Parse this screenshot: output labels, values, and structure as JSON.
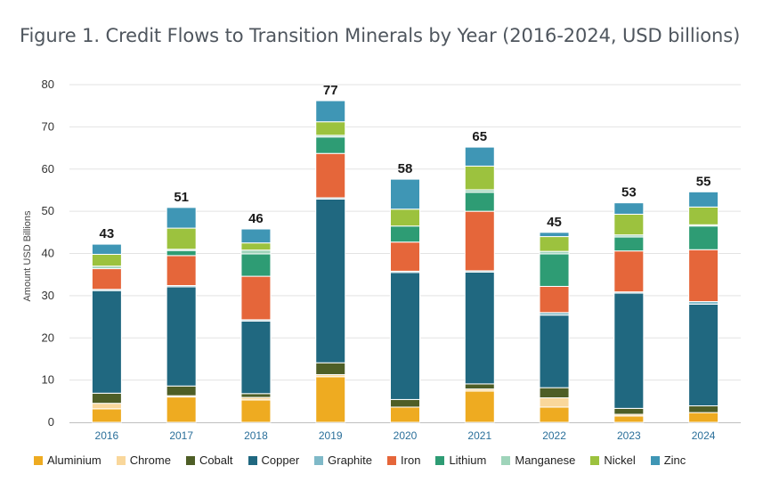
{
  "title": "Figure 1. Credit Flows to Transition Minerals by Year (2016-2024, USD billions)",
  "chart_data": {
    "type": "bar",
    "stacked": true,
    "categories": [
      "2016",
      "2017",
      "2018",
      "2019",
      "2020",
      "2021",
      "2022",
      "2023",
      "2024"
    ],
    "ylabel": "Amount USD Billions",
    "xlabel": "",
    "ylim": [
      0,
      80
    ],
    "yticks": [
      0,
      10,
      20,
      30,
      40,
      50,
      60,
      70,
      80
    ],
    "grid": true,
    "legend_position": "bottom",
    "totals": [
      "43",
      "51",
      "46",
      "77",
      "58",
      "65",
      "45",
      "53",
      "55"
    ],
    "series": [
      {
        "name": "Aluminium",
        "color": "#eeab21",
        "values": [
          3.2,
          6.0,
          5.3,
          10.8,
          3.6,
          7.4,
          3.6,
          1.5,
          2.3
        ]
      },
      {
        "name": "Chrome",
        "color": "#f9d79b",
        "values": [
          1.3,
          0.3,
          0.6,
          0.5,
          0.0,
          0.5,
          2.2,
          0.4,
          0.0
        ]
      },
      {
        "name": "Cobalt",
        "color": "#4e5e26",
        "values": [
          2.4,
          2.3,
          0.9,
          2.8,
          1.8,
          1.2,
          2.4,
          1.4,
          1.6
        ]
      },
      {
        "name": "Copper",
        "color": "#206880",
        "values": [
          24.3,
          23.5,
          17.2,
          38.8,
          30.1,
          26.5,
          17.2,
          27.3,
          24.1
        ]
      },
      {
        "name": "Graphite",
        "color": "#7fb9c8",
        "values": [
          0.3,
          0.3,
          0.3,
          0.3,
          0.3,
          0.3,
          0.6,
          0.3,
          0.6
        ]
      },
      {
        "name": "Iron",
        "color": "#e5663a",
        "values": [
          4.9,
          7.1,
          10.3,
          10.5,
          6.9,
          14.1,
          6.2,
          9.7,
          12.3
        ]
      },
      {
        "name": "Lithium",
        "color": "#2e9c74",
        "values": [
          0.0,
          1.2,
          5.3,
          3.9,
          3.8,
          4.5,
          7.7,
          3.3,
          5.6
        ]
      },
      {
        "name": "Manganese",
        "color": "#9fd4ba",
        "values": [
          0.6,
          0.3,
          0.9,
          0.4,
          0.0,
          0.6,
          0.6,
          0.5,
          0.3
        ]
      },
      {
        "name": "Nickel",
        "color": "#9cc23e",
        "values": [
          2.8,
          5.0,
          1.7,
          3.2,
          4.0,
          5.6,
          3.5,
          4.9,
          4.2
        ]
      },
      {
        "name": "Zinc",
        "color": "#3f96b5",
        "values": [
          2.4,
          4.9,
          3.3,
          5.0,
          7.1,
          4.5,
          1.0,
          2.7,
          3.6
        ]
      }
    ]
  }
}
